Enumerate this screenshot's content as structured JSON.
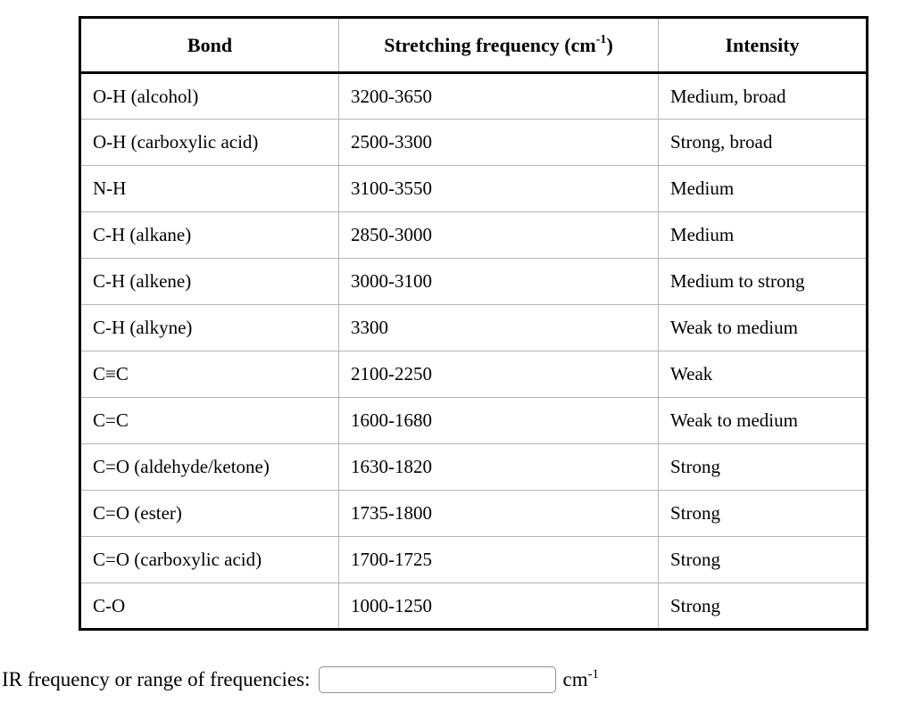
{
  "table": {
    "headers": {
      "bond": "Bond",
      "frequency_base": "Stretching frequency (cm",
      "frequency_sup": "-1",
      "frequency_close": ")",
      "intensity": "Intensity"
    },
    "rows": [
      {
        "bond": "O-H (alcohol)",
        "frequency": "3200-3650",
        "intensity": "Medium, broad"
      },
      {
        "bond": "O-H (carboxylic acid)",
        "frequency": "2500-3300",
        "intensity": "Strong, broad"
      },
      {
        "bond": "N-H",
        "frequency": "3100-3550",
        "intensity": "Medium"
      },
      {
        "bond": "C-H (alkane)",
        "frequency": "2850-3000",
        "intensity": "Medium"
      },
      {
        "bond": "C-H (alkene)",
        "frequency": "3000-3100",
        "intensity": "Medium to strong"
      },
      {
        "bond": "C-H (alkyne)",
        "frequency": "3300",
        "intensity": "Weak to medium"
      },
      {
        "bond": "C≡C",
        "frequency": "2100-2250",
        "intensity": "Weak"
      },
      {
        "bond": "C=C",
        "frequency": "1600-1680",
        "intensity": "Weak to medium"
      },
      {
        "bond": "C=O (aldehyde/ketone)",
        "frequency": "1630-1820",
        "intensity": "Strong"
      },
      {
        "bond": "C=O (ester)",
        "frequency": "1735-1800",
        "intensity": "Strong"
      },
      {
        "bond": "C=O (carboxylic acid)",
        "frequency": "1700-1725",
        "intensity": "Strong"
      },
      {
        "bond": "C-O",
        "frequency": "1000-1250",
        "intensity": "Strong"
      }
    ]
  },
  "form": {
    "label": "IR frequency or range of frequencies:",
    "input_value": "",
    "unit_base": "cm",
    "unit_sup": "-1"
  },
  "colors": {
    "outer_border": "#000000",
    "inner_border": "#b4b4b4",
    "input_border": "#8f8f8f",
    "background": "#ffffff",
    "text": "#000000"
  }
}
